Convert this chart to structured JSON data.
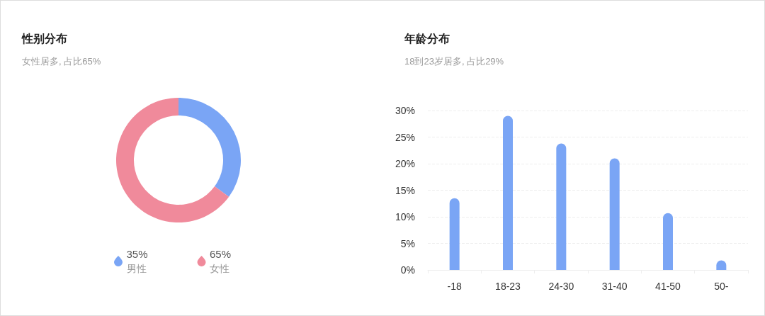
{
  "chart_data": [
    {
      "type": "donut",
      "title": "性别分布",
      "subtitle": "女性居多, 占比65%",
      "categories": [
        "男性",
        "女性"
      ],
      "values": [
        35,
        65
      ],
      "colors": [
        "#7aa5f5",
        "#f08a9b"
      ],
      "value_labels": [
        "35%",
        "65%"
      ],
      "legend": "bottom"
    },
    {
      "type": "bar",
      "title": "年龄分布",
      "subtitle": "18到23岁居多, 占比29%",
      "categories": [
        "-18",
        "18-23",
        "24-30",
        "31-40",
        "41-50",
        "50-"
      ],
      "values": [
        13.5,
        29,
        23.8,
        21,
        10.7,
        1.8
      ],
      "color": "#7aa5f5",
      "ylim": [
        0,
        30
      ],
      "yticks": [
        {
          "value": 0,
          "label": "0%"
        },
        {
          "value": 5,
          "label": "5%"
        },
        {
          "value": 10,
          "label": "10%"
        },
        {
          "value": 15,
          "label": "15%"
        },
        {
          "value": 20,
          "label": "20%"
        },
        {
          "value": 25,
          "label": "25%"
        },
        {
          "value": 30,
          "label": "30%"
        }
      ],
      "grid": "y",
      "legend": false
    }
  ]
}
